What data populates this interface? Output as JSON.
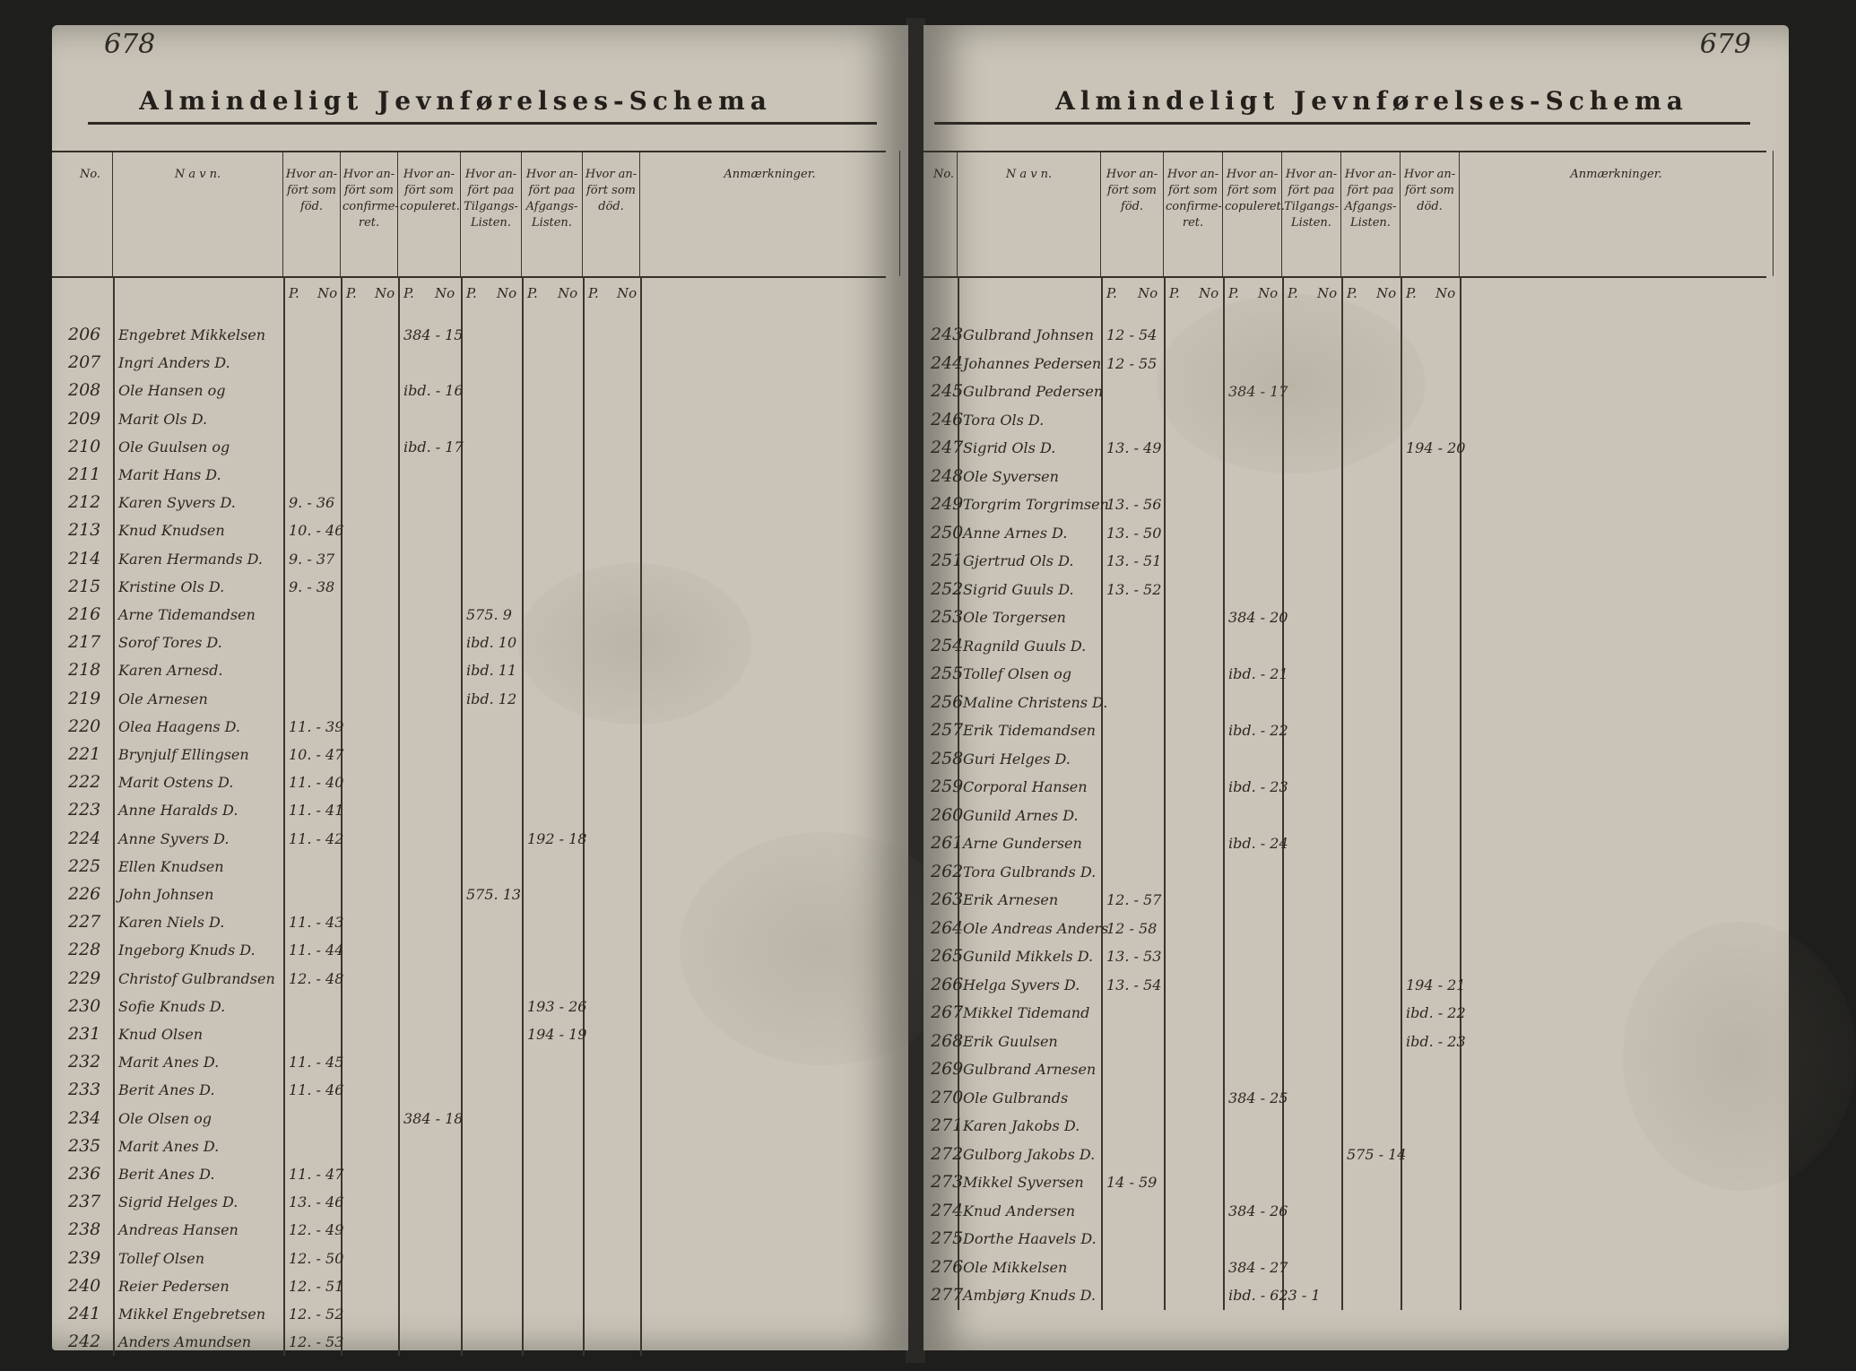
{
  "left_page": {
    "page_number": "678",
    "title": "Almindeligt Jevnførelses-Schema",
    "headers": [
      {
        "key": "no",
        "label": "No."
      },
      {
        "key": "navn",
        "label": "N a v n."
      },
      {
        "key": "fodt",
        "label": "Hvor an-fört som föd."
      },
      {
        "key": "konf",
        "label": "Hvor an-fört som confirme-ret."
      },
      {
        "key": "cop",
        "label": "Hvor an-fört som copuleret."
      },
      {
        "key": "tilg",
        "label": "Hvor an-fört paa Tilgangs-Listen."
      },
      {
        "key": "afg",
        "label": "Hvor an-fört paa Afgangs-Listen."
      },
      {
        "key": "dod",
        "label": "Hvor an-fört som död."
      },
      {
        "key": "anm",
        "label": "Anmærkninger."
      }
    ],
    "pno_labels": [
      "P.",
      "No",
      "P.",
      "No",
      "P.",
      "No",
      "P.",
      "No",
      "P.",
      "No",
      "P.",
      "No"
    ],
    "rows": [
      {
        "no": "206",
        "navn": "Engebret Mikkelsen",
        "fodt": "",
        "konf": "",
        "cop": "384 - 15",
        "tilg": "",
        "afg": "",
        "dod": ""
      },
      {
        "no": "207",
        "navn": "Ingri Anders D.",
        "fodt": "",
        "konf": "",
        "cop": "",
        "tilg": "",
        "afg": "",
        "dod": ""
      },
      {
        "no": "208",
        "navn": "Ole Hansen og",
        "fodt": "",
        "konf": "",
        "cop": "ibd. - 16",
        "tilg": "",
        "afg": "",
        "dod": ""
      },
      {
        "no": "209",
        "navn": "Marit Ols D.",
        "fodt": "",
        "konf": "",
        "cop": "",
        "tilg": "",
        "afg": "",
        "dod": ""
      },
      {
        "no": "210",
        "navn": "Ole Guulsen og",
        "fodt": "",
        "konf": "",
        "cop": "ibd. - 17",
        "tilg": "",
        "afg": "",
        "dod": ""
      },
      {
        "no": "211",
        "navn": "Marit Hans D.",
        "fodt": "",
        "konf": "",
        "cop": "",
        "tilg": "",
        "afg": "",
        "dod": ""
      },
      {
        "no": "212",
        "navn": "Karen Syvers D.",
        "fodt": "9. - 36",
        "konf": "",
        "cop": "",
        "tilg": "",
        "afg": "",
        "dod": ""
      },
      {
        "no": "213",
        "navn": "Knud Knudsen",
        "fodt": "10. - 46",
        "konf": "",
        "cop": "",
        "tilg": "",
        "afg": "",
        "dod": ""
      },
      {
        "no": "214",
        "navn": "Karen Hermands D.",
        "fodt": "9. - 37",
        "konf": "",
        "cop": "",
        "tilg": "",
        "afg": "",
        "dod": ""
      },
      {
        "no": "215",
        "navn": "Kristine Ols D.",
        "fodt": "9. - 38",
        "konf": "",
        "cop": "",
        "tilg": "",
        "afg": "",
        "dod": ""
      },
      {
        "no": "216",
        "navn": "Arne Tidemandsen",
        "fodt": "",
        "konf": "",
        "cop": "",
        "tilg": "575. 9",
        "afg": "",
        "dod": ""
      },
      {
        "no": "217",
        "navn": "Sorof Tores D.",
        "fodt": "",
        "konf": "",
        "cop": "",
        "tilg": "ibd. 10",
        "afg": "",
        "dod": ""
      },
      {
        "no": "218",
        "navn": "Karen Arnesd.",
        "fodt": "",
        "konf": "",
        "cop": "",
        "tilg": "ibd. 11",
        "afg": "",
        "dod": ""
      },
      {
        "no": "219",
        "navn": "Ole Arnesen",
        "fodt": "",
        "konf": "",
        "cop": "",
        "tilg": "ibd. 12",
        "afg": "",
        "dod": ""
      },
      {
        "no": "220",
        "navn": "Olea Haagens D.",
        "fodt": "11. - 39",
        "konf": "",
        "cop": "",
        "tilg": "",
        "afg": "",
        "dod": ""
      },
      {
        "no": "221",
        "navn": "Brynjulf Ellingsen",
        "fodt": "10. - 47",
        "konf": "",
        "cop": "",
        "tilg": "",
        "afg": "",
        "dod": ""
      },
      {
        "no": "222",
        "navn": "Marit Ostens D.",
        "fodt": "11. - 40",
        "konf": "",
        "cop": "",
        "tilg": "",
        "afg": "",
        "dod": ""
      },
      {
        "no": "223",
        "navn": "Anne Haralds D.",
        "fodt": "11. - 41",
        "konf": "",
        "cop": "",
        "tilg": "",
        "afg": "",
        "dod": ""
      },
      {
        "no": "224",
        "navn": "Anne Syvers D.",
        "fodt": "11. - 42",
        "konf": "",
        "cop": "",
        "tilg": "",
        "afg": "192 - 18",
        "dod": ""
      },
      {
        "no": "225",
        "navn": "Ellen Knudsen",
        "fodt": "",
        "konf": "",
        "cop": "",
        "tilg": "",
        "afg": "",
        "dod": ""
      },
      {
        "no": "226",
        "navn": "John Johnsen",
        "fodt": "",
        "konf": "",
        "cop": "",
        "tilg": "575. 13",
        "afg": "",
        "dod": ""
      },
      {
        "no": "227",
        "navn": "Karen Niels D.",
        "fodt": "11. - 43",
        "konf": "",
        "cop": "",
        "tilg": "",
        "afg": "",
        "dod": ""
      },
      {
        "no": "228",
        "navn": "Ingeborg Knuds D.",
        "fodt": "11. - 44",
        "konf": "",
        "cop": "",
        "tilg": "",
        "afg": "",
        "dod": ""
      },
      {
        "no": "229",
        "navn": "Christof Gulbrandsen",
        "fodt": "12. - 48",
        "konf": "",
        "cop": "",
        "tilg": "",
        "afg": "",
        "dod": ""
      },
      {
        "no": "230",
        "navn": "Sofie Knuds D.",
        "fodt": "",
        "konf": "",
        "cop": "",
        "tilg": "",
        "afg": "193 - 26",
        "dod": ""
      },
      {
        "no": "231",
        "navn": "Knud Olsen",
        "fodt": "",
        "konf": "",
        "cop": "",
        "tilg": "",
        "afg": "194 - 19",
        "dod": ""
      },
      {
        "no": "232",
        "navn": "Marit Anes D.",
        "fodt": "11. - 45",
        "konf": "",
        "cop": "",
        "tilg": "",
        "afg": "",
        "dod": ""
      },
      {
        "no": "233",
        "navn": "Berit Anes D.",
        "fodt": "11. - 46",
        "konf": "",
        "cop": "",
        "tilg": "",
        "afg": "",
        "dod": ""
      },
      {
        "no": "234",
        "navn": "Ole Olsen og",
        "fodt": "",
        "konf": "",
        "cop": "384 - 18",
        "tilg": "",
        "afg": "",
        "dod": ""
      },
      {
        "no": "235",
        "navn": "Marit Anes D.",
        "fodt": "",
        "konf": "",
        "cop": "",
        "tilg": "",
        "afg": "",
        "dod": ""
      },
      {
        "no": "236",
        "navn": "Berit Anes D.",
        "fodt": "11. - 47",
        "konf": "",
        "cop": "",
        "tilg": "",
        "afg": "",
        "dod": ""
      },
      {
        "no": "237",
        "navn": "Sigrid Helges D.",
        "fodt": "13. - 46",
        "konf": "",
        "cop": "",
        "tilg": "",
        "afg": "",
        "dod": ""
      },
      {
        "no": "238",
        "navn": "Andreas Hansen",
        "fodt": "12. - 49",
        "konf": "",
        "cop": "",
        "tilg": "",
        "afg": "",
        "dod": ""
      },
      {
        "no": "239",
        "navn": "Tollef Olsen",
        "fodt": "12. - 50",
        "konf": "",
        "cop": "",
        "tilg": "",
        "afg": "",
        "dod": ""
      },
      {
        "no": "240",
        "navn": "Reier Pedersen",
        "fodt": "12. - 51",
        "konf": "",
        "cop": "",
        "tilg": "",
        "afg": "",
        "dod": ""
      },
      {
        "no": "241",
        "navn": "Mikkel Engebretsen",
        "fodt": "12. - 52",
        "konf": "",
        "cop": "",
        "tilg": "",
        "afg": "",
        "dod": ""
      },
      {
        "no": "242",
        "navn": "Anders Amundsen",
        "fodt": "12. - 53",
        "konf": "",
        "cop": "",
        "tilg": "",
        "afg": "",
        "dod": ""
      }
    ]
  },
  "right_page": {
    "page_number": "679",
    "title": "Almindeligt Jevnførelses-Schema",
    "headers": [
      {
        "key": "no",
        "label": "No."
      },
      {
        "key": "navn",
        "label": "N a v n."
      },
      {
        "key": "fodt",
        "label": "Hvor an-fört som föd."
      },
      {
        "key": "konf",
        "label": "Hvor an-fört som confirme-ret."
      },
      {
        "key": "cop",
        "label": "Hvor an-fört som copuleret."
      },
      {
        "key": "tilg",
        "label": "Hvor an-fört paa Tilgangs-Listen."
      },
      {
        "key": "afg",
        "label": "Hvor an-fört paa Afgangs-Listen."
      },
      {
        "key": "dod",
        "label": "Hvor an-fört som död."
      },
      {
        "key": "anm",
        "label": "Anmærkninger."
      }
    ],
    "pno_labels": [
      "P.",
      "No",
      "P.",
      "No",
      "P.",
      "No",
      "P.",
      "No",
      "P.",
      "No",
      "P.",
      "No"
    ],
    "rows": [
      {
        "no": "243",
        "navn": "Gulbrand Johnsen",
        "fodt": "12 - 54",
        "konf": "",
        "cop": "",
        "tilg": "",
        "afg": "",
        "dod": ""
      },
      {
        "no": "244",
        "navn": "Johannes Pedersen",
        "fodt": "12 - 55",
        "konf": "",
        "cop": "",
        "tilg": "",
        "afg": "",
        "dod": ""
      },
      {
        "no": "245",
        "navn": "Gulbrand Pedersen",
        "fodt": "",
        "konf": "",
        "cop": "384 - 17",
        "tilg": "",
        "afg": "",
        "dod": ""
      },
      {
        "no": "246",
        "navn": "Tora Ols D.",
        "fodt": "",
        "konf": "",
        "cop": "",
        "tilg": "",
        "afg": "",
        "dod": ""
      },
      {
        "no": "247",
        "navn": "Sigrid Ols D.",
        "fodt": "13. - 49",
        "konf": "",
        "cop": "",
        "tilg": "",
        "afg": "",
        "dod": "194 - 20"
      },
      {
        "no": "248",
        "navn": "Ole Syversen",
        "fodt": "",
        "konf": "",
        "cop": "",
        "tilg": "",
        "afg": "",
        "dod": ""
      },
      {
        "no": "249",
        "navn": "Torgrim Torgrimsen",
        "fodt": "13. - 56",
        "konf": "",
        "cop": "",
        "tilg": "",
        "afg": "",
        "dod": ""
      },
      {
        "no": "250",
        "navn": "Anne Arnes D.",
        "fodt": "13. - 50",
        "konf": "",
        "cop": "",
        "tilg": "",
        "afg": "",
        "dod": ""
      },
      {
        "no": "251",
        "navn": "Gjertrud Ols D.",
        "fodt": "13. - 51",
        "konf": "",
        "cop": "",
        "tilg": "",
        "afg": "",
        "dod": ""
      },
      {
        "no": "252",
        "navn": "Sigrid Guuls D.",
        "fodt": "13. - 52",
        "konf": "",
        "cop": "",
        "tilg": "",
        "afg": "",
        "dod": ""
      },
      {
        "no": "253",
        "navn": "Ole Torgersen",
        "fodt": "",
        "konf": "",
        "cop": "384 - 20",
        "tilg": "",
        "afg": "",
        "dod": ""
      },
      {
        "no": "254",
        "navn": "Ragnild Guuls D.",
        "fodt": "",
        "konf": "",
        "cop": "",
        "tilg": "",
        "afg": "",
        "dod": ""
      },
      {
        "no": "255",
        "navn": "Tollef Olsen og",
        "fodt": "",
        "konf": "",
        "cop": "ibd. - 21",
        "tilg": "",
        "afg": "",
        "dod": ""
      },
      {
        "no": "256",
        "navn": "Maline Christens D.",
        "fodt": "",
        "konf": "",
        "cop": "",
        "tilg": "",
        "afg": "",
        "dod": ""
      },
      {
        "no": "257",
        "navn": "Erik Tidemandsen",
        "fodt": "",
        "konf": "",
        "cop": "ibd. - 22",
        "tilg": "",
        "afg": "",
        "dod": ""
      },
      {
        "no": "258",
        "navn": "Guri Helges D.",
        "fodt": "",
        "konf": "",
        "cop": "",
        "tilg": "",
        "afg": "",
        "dod": ""
      },
      {
        "no": "259",
        "navn": "Corporal Hansen",
        "fodt": "",
        "konf": "",
        "cop": "ibd. - 23",
        "tilg": "",
        "afg": "",
        "dod": ""
      },
      {
        "no": "260",
        "navn": "Gunild Arnes D.",
        "fodt": "",
        "konf": "",
        "cop": "",
        "tilg": "",
        "afg": "",
        "dod": ""
      },
      {
        "no": "261",
        "navn": "Arne Gundersen",
        "fodt": "",
        "konf": "",
        "cop": "ibd. - 24",
        "tilg": "",
        "afg": "",
        "dod": ""
      },
      {
        "no": "262",
        "navn": "Tora Gulbrands D.",
        "fodt": "",
        "konf": "",
        "cop": "",
        "tilg": "",
        "afg": "",
        "dod": ""
      },
      {
        "no": "263",
        "navn": "Erik Arnesen",
        "fodt": "12. - 57",
        "konf": "",
        "cop": "",
        "tilg": "",
        "afg": "",
        "dod": ""
      },
      {
        "no": "264",
        "navn": "Ole Andreas Anders",
        "fodt": "12 - 58",
        "konf": "",
        "cop": "",
        "tilg": "",
        "afg": "",
        "dod": ""
      },
      {
        "no": "265",
        "navn": "Gunild Mikkels D.",
        "fodt": "13. - 53",
        "konf": "",
        "cop": "",
        "tilg": "",
        "afg": "",
        "dod": ""
      },
      {
        "no": "266",
        "navn": "Helga Syvers D.",
        "fodt": "13. - 54",
        "konf": "",
        "cop": "",
        "tilg": "",
        "afg": "",
        "dod": "194 - 21"
      },
      {
        "no": "267",
        "navn": "Mikkel Tidemand",
        "fodt": "",
        "konf": "",
        "cop": "",
        "tilg": "",
        "afg": "",
        "dod": "ibd. - 22"
      },
      {
        "no": "268",
        "navn": "Erik Guulsen",
        "fodt": "",
        "konf": "",
        "cop": "",
        "tilg": "",
        "afg": "",
        "dod": "ibd. - 23"
      },
      {
        "no": "269",
        "navn": "Gulbrand Arnesen",
        "fodt": "",
        "konf": "",
        "cop": "",
        "tilg": "",
        "afg": "",
        "dod": ""
      },
      {
        "no": "270",
        "navn": "Ole Gulbrands",
        "fodt": "",
        "konf": "",
        "cop": "384 - 25",
        "tilg": "",
        "afg": "",
        "dod": ""
      },
      {
        "no": "271",
        "navn": "Karen Jakobs D.",
        "fodt": "",
        "konf": "",
        "cop": "",
        "tilg": "",
        "afg": "",
        "dod": ""
      },
      {
        "no": "272",
        "navn": "Gulborg Jakobs D.",
        "fodt": "",
        "konf": "",
        "cop": "",
        "tilg": "",
        "afg": "575 - 14",
        "dod": ""
      },
      {
        "no": "273",
        "navn": "Mikkel Syversen",
        "fodt": "14 - 59",
        "konf": "",
        "cop": "",
        "tilg": "",
        "afg": "",
        "dod": ""
      },
      {
        "no": "274",
        "navn": "Knud Andersen",
        "fodt": "",
        "konf": "",
        "cop": "384 - 26",
        "tilg": "",
        "afg": "",
        "dod": ""
      },
      {
        "no": "275",
        "navn": "Dorthe Haavels D.",
        "fodt": "",
        "konf": "",
        "cop": "",
        "tilg": "",
        "afg": "",
        "dod": ""
      },
      {
        "no": "276",
        "navn": "Ole Mikkelsen",
        "fodt": "",
        "konf": "",
        "cop": "384 - 27",
        "tilg": "",
        "afg": "",
        "dod": ""
      },
      {
        "no": "277",
        "navn": "Ambjørg Knuds D.",
        "fodt": "",
        "konf": "",
        "cop": "ibd. - 623 - 1",
        "tilg": "",
        "afg": "",
        "dod": ""
      }
    ]
  }
}
